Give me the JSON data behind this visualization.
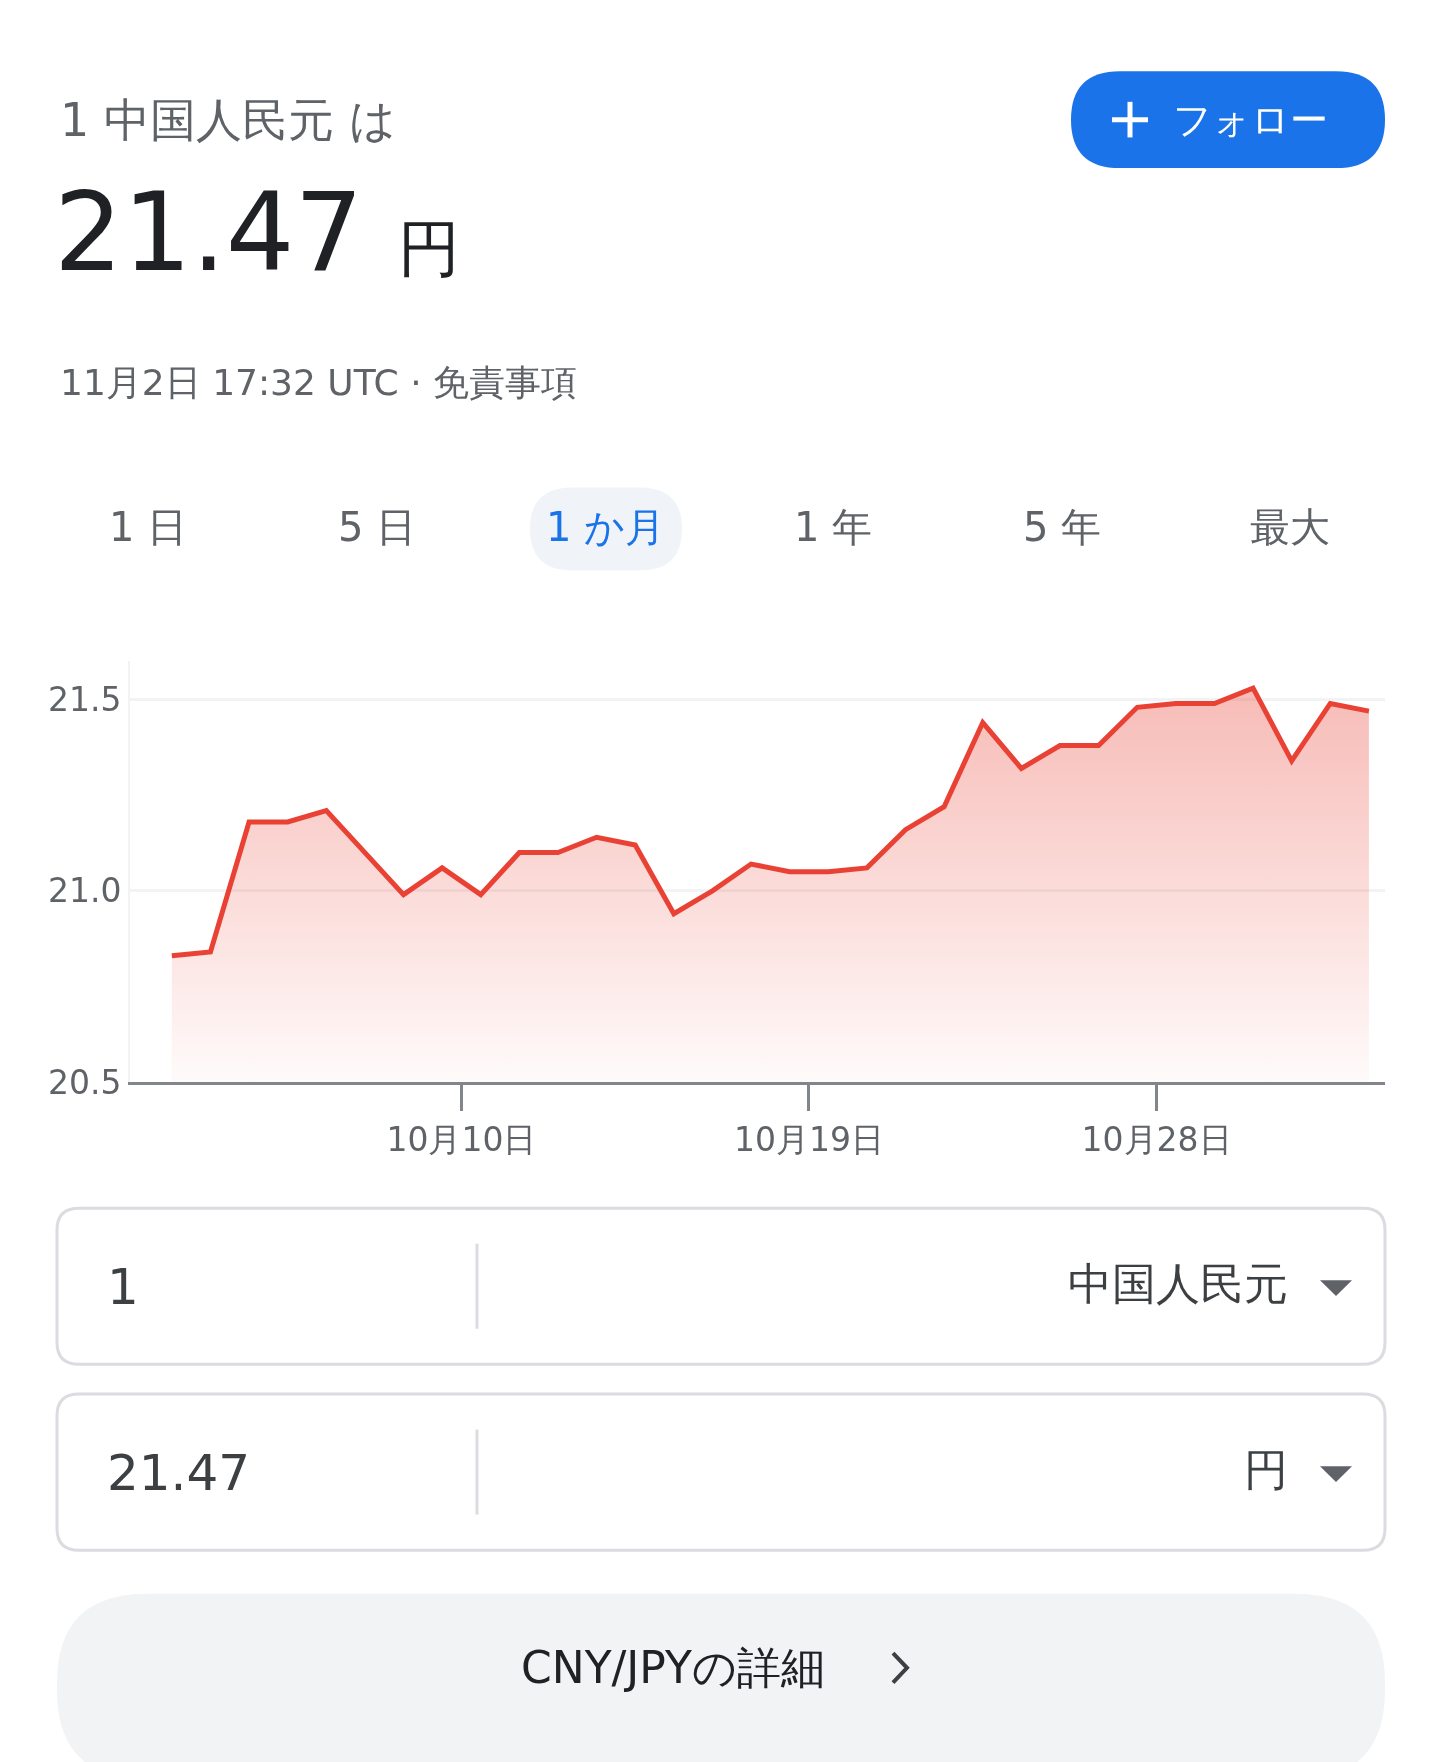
{
  "chart_data": {
    "type": "area",
    "title": "1 中国人民元 は",
    "subtitle": "21.47 円",
    "annotations": [
      "11月2日 17:32 UTC · 免責事項",
      "フォロー",
      "1 日",
      "5 日",
      "1 か月",
      "1 年",
      "5 年",
      "最大",
      "1",
      "中国人民元",
      "21.47",
      "円",
      "CNY/JPYの詳細"
    ],
    "x": [
      "--10-02T12:00",
      "--10-03T12:00",
      "--10-04T12:00",
      "--10-05T12:00",
      "--10-06T12:00",
      "--10-07T12:00",
      "--10-08T12:00",
      "--10-09T12:00",
      "--10-10T12:00",
      "--10-11T12:00",
      "--10-12T12:00",
      "--10-13T12:00",
      "--10-14T12:00",
      "--10-15T12:00",
      "--10-16T12:00",
      "--10-17T12:00",
      "--10-18T12:00",
      "--10-19T12:00",
      "--10-20T12:00",
      "--10-21T12:00",
      "--10-22T12:00",
      "--10-23T12:00",
      "--10-24T12:00",
      "--10-25T12:00",
      "--10-26T12:00",
      "--10-27T12:00",
      "--10-28T12:00",
      "--10-29T12:00",
      "--10-30T12:00",
      "--10-31T12:00",
      "--11-01T12:00",
      "--11-02T12:00"
    ],
    "series": [
      {
        "color": "#e94235",
        "values": [
          20.83,
          20.84,
          21.18,
          21.18,
          21.21,
          21.1,
          20.99,
          21.06,
          20.99,
          21.1,
          21.1,
          21.14,
          21.12,
          20.94,
          21.0,
          21.07,
          21.05,
          21.05,
          21.06,
          21.16,
          21.22,
          21.44,
          21.32,
          21.38,
          21.38,
          21.48,
          21.49,
          21.49,
          21.53,
          21.34,
          21.49,
          21.47
        ]
      }
    ],
    "xlim": [
      "--10-01T10:00",
      "--11-02T22:00"
    ],
    "xticks": [
      {
        "value": "--10-10",
        "label": "10月10日"
      },
      {
        "value": "--10-19",
        "label": "10月19日"
      },
      {
        "value": "--10-28",
        "label": "10月28日"
      }
    ],
    "yticks": [
      {
        "value": 20.5,
        "label": "20.5"
      },
      {
        "value": 21.0,
        "label": "21.0"
      },
      {
        "value": 21.5,
        "label": "21.5"
      }
    ],
    "ylim": [
      20.5,
      21.6
    ],
    "grid": "y",
    "marker": "none",
    "line_style": "solid"
  }
}
